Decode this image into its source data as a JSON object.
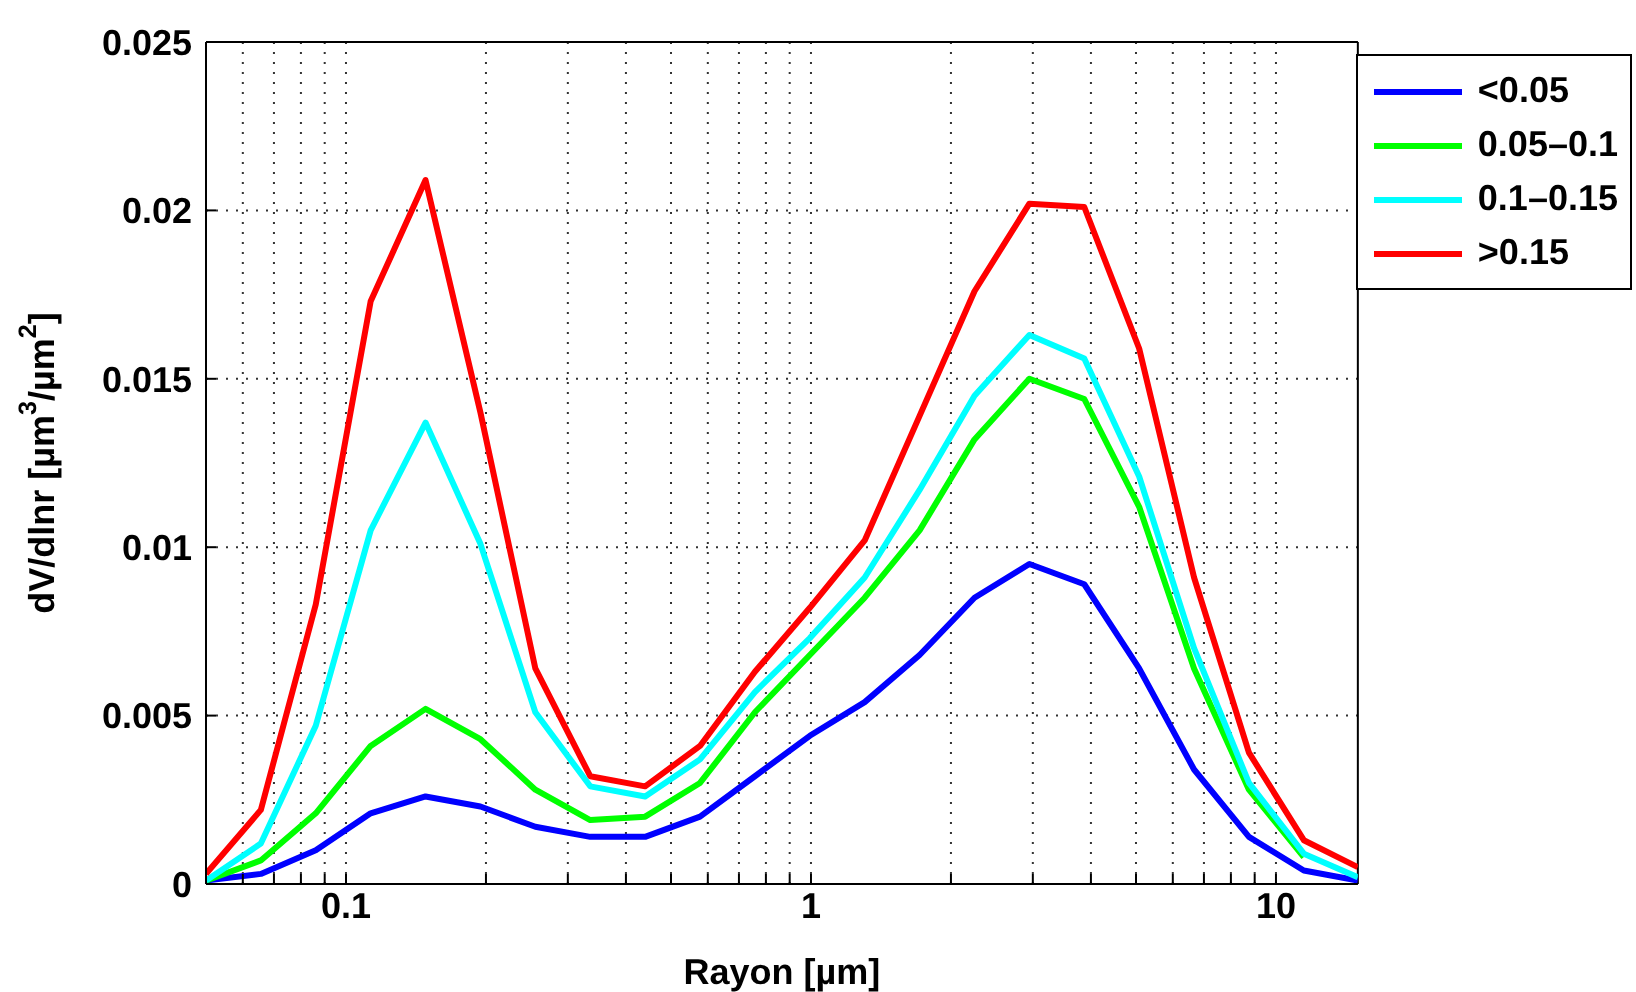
{
  "chart_data": {
    "type": "line",
    "xlabel": "Rayon [µm]",
    "ylabel": "dV/dlnr [µm$^{3}$/µm$^{2}$]",
    "log": "x",
    "grid": true,
    "legend": "top right",
    "line_style": "solid",
    "marker": "none",
    "x": [
      0.05,
      0.0656,
      0.0861,
      0.113,
      0.1483,
      0.1946,
      0.2554,
      0.3352,
      0.4399,
      0.5773,
      0.7576,
      0.9943,
      1.3048,
      1.7124,
      2.2473,
      2.9492,
      3.8703,
      5.0793,
      6.6657,
      8.7475,
      11.4797,
      15
    ],
    "xlim": [
      0.05,
      15
    ],
    "xticks": [
      {
        "value": 0.06,
        "label": null
      },
      {
        "value": 0.07,
        "label": null
      },
      {
        "value": 0.08,
        "label": null
      },
      {
        "value": 0.09,
        "label": null
      },
      0.1,
      {
        "value": 0.2,
        "label": null
      },
      {
        "value": 0.3,
        "label": null
      },
      {
        "value": 0.4,
        "label": null
      },
      {
        "value": 0.5,
        "label": null
      },
      {
        "value": 0.6,
        "label": null
      },
      {
        "value": 0.7,
        "label": null
      },
      {
        "value": 0.8,
        "label": null
      },
      {
        "value": 0.9,
        "label": null
      },
      1,
      {
        "value": 2,
        "label": null
      },
      {
        "value": 3,
        "label": null
      },
      {
        "value": 4,
        "label": null
      },
      {
        "value": 5,
        "label": null
      },
      {
        "value": 6,
        "label": null
      },
      {
        "value": 7,
        "label": null
      },
      {
        "value": 8,
        "label": null
      },
      {
        "value": 9,
        "label": null
      },
      10
    ],
    "ylim": [
      0,
      0.025
    ],
    "yticks": [
      0,
      0.005,
      0.01,
      0.015,
      0.02,
      0.025
    ],
    "series": [
      {
        "name": "<0.05",
        "color": "#0000ff",
        "values": [
          0.0001,
          0.0003,
          0.001,
          0.0021,
          0.0026,
          0.0023,
          0.0017,
          0.0014,
          0.0014,
          0.002,
          0.0032,
          0.0044,
          0.0054,
          0.0068,
          0.0085,
          0.0095,
          0.0089,
          0.0064,
          0.0034,
          0.0014,
          0.0004,
          0.0001
        ]
      },
      {
        "name": "0.05–0.1",
        "color": "#00ff00",
        "values": [
          0.0001,
          0.0007,
          0.0021,
          0.0041,
          0.0052,
          0.0043,
          0.0028,
          0.0019,
          0.002,
          0.003,
          0.0051,
          0.0068,
          0.0085,
          0.0105,
          0.0132,
          0.015,
          0.0144,
          0.0112,
          0.0064,
          0.0028,
          0.0008,
          null
        ]
      },
      {
        "name": "0.1–0.15",
        "color": "#00ffff",
        "values": [
          0.0001,
          0.0012,
          0.0047,
          0.0105,
          0.0137,
          0.0101,
          0.0051,
          0.0029,
          0.0026,
          0.0037,
          0.0057,
          0.0073,
          0.0091,
          0.0117,
          0.0145,
          0.0163,
          0.0156,
          0.0121,
          0.007,
          0.003,
          0.0009,
          0.0002
        ]
      },
      {
        "name": ">0.15",
        "color": "#ff0000",
        "values": [
          0.0003,
          0.0022,
          0.0083,
          0.0173,
          0.0209,
          0.014,
          0.0064,
          0.0032,
          0.0029,
          0.0041,
          0.0063,
          0.0082,
          0.0102,
          0.0139,
          0.0176,
          0.0202,
          0.0201,
          0.0159,
          0.0091,
          0.0039,
          0.0013,
          0.0005
        ]
      }
    ]
  }
}
